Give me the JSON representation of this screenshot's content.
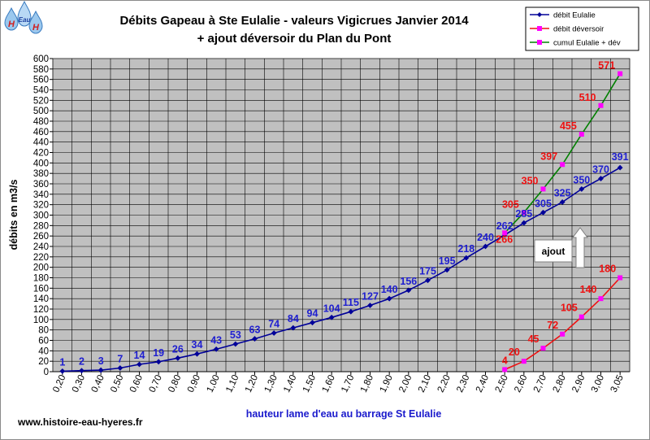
{
  "logo": {
    "line1": "H",
    "line2": "Eau",
    "line3": "H"
  },
  "website": "www.histoire-eau-hyeres.fr",
  "annotation": {
    "text": "ajout"
  },
  "colors": {
    "plot_bg": "#c0c0c0",
    "eulalie": "#000099",
    "eulalie_label": "#1f1fd0",
    "deversoir_line": "#ee1111",
    "deversoir_marker": "#ff00ff",
    "deversoir_label": "#ee1111",
    "cumul_line": "#008000",
    "cumul_marker": "#ff00ff",
    "cumul_label": "#ee1111"
  },
  "chart_data": {
    "type": "line",
    "title": "Débits Gapeau à Ste Eulalie - valeurs Vigicrues Janvier 2014",
    "subtitle": "+ ajout déversoir du Plan du Pont",
    "xlabel": "hauteur lame d'eau au barrage St Eulalie",
    "ylabel": "débits en m3/s",
    "ylim": [
      0,
      600
    ],
    "y_step": 20,
    "x_tick_labels": [
      "0,20",
      "0,30",
      "0,40",
      "0,50",
      "0,60",
      "0,70",
      "0,80",
      "0,90",
      "1,00",
      "1,10",
      "1,20",
      "1,30",
      "1,40",
      "1,50",
      "1,60",
      "1,70",
      "1,80",
      "1,90",
      "2,00",
      "2,10",
      "2,20",
      "2,30",
      "2,40",
      "2,50",
      "2,60",
      "2,70",
      "2,80",
      "2,90",
      "3,00",
      "3,05"
    ],
    "grid": true,
    "legend_position": "top-right",
    "series": [
      {
        "name": "débit Eulalie",
        "x": [
          0.2,
          0.3,
          0.4,
          0.5,
          0.6,
          0.7,
          0.8,
          0.9,
          1.0,
          1.1,
          1.2,
          1.3,
          1.4,
          1.5,
          1.6,
          1.7,
          1.8,
          1.9,
          2.0,
          2.1,
          2.2,
          2.3,
          2.4,
          2.5,
          2.6,
          2.7,
          2.8,
          2.9,
          3.0,
          3.05
        ],
        "values": [
          1,
          2,
          3,
          7,
          14,
          19,
          26,
          34,
          43,
          53,
          63,
          74,
          84,
          94,
          104,
          115,
          127,
          140,
          156,
          175,
          195,
          218,
          240,
          262,
          285,
          305,
          325,
          350,
          370,
          391
        ]
      },
      {
        "name": "débit déversoir",
        "x": [
          2.5,
          2.6,
          2.7,
          2.8,
          2.9,
          3.0,
          3.05
        ],
        "values": [
          4,
          20,
          45,
          72,
          105,
          140,
          180
        ]
      },
      {
        "name": "cumul Eulalie + dév",
        "x": [
          2.5,
          2.6,
          2.7,
          2.8,
          2.9,
          3.0,
          3.05
        ],
        "values": [
          266,
          305,
          350,
          397,
          455,
          510,
          571
        ]
      }
    ]
  }
}
